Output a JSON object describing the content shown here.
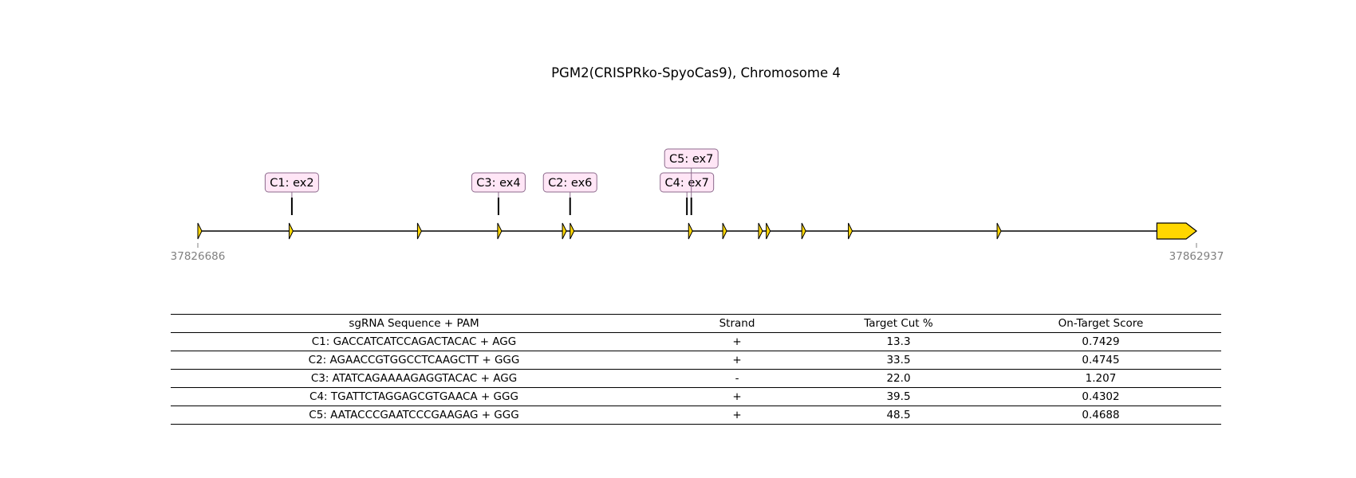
{
  "title": "PGM2(CRISPRko-SpyoCas9), Chromosome 4",
  "gene": {
    "start_label": "37826686",
    "end_label": "37862937",
    "start": 37826686,
    "end": 37862937,
    "exons": [
      37826686,
      37830000,
      37834660,
      37837570,
      37839920,
      37840200,
      37844500,
      37845740,
      37847040,
      37847320,
      37848610,
      37850300,
      37855700
    ],
    "final_exon": [
      37861500,
      37862937
    ],
    "exon_color": "#FFD700"
  },
  "cut_sites": [
    {
      "label": "C1: ex2",
      "pos": 37830100,
      "tier": 1
    },
    {
      "label": "C3: ex4",
      "pos": 37837600,
      "tier": 1
    },
    {
      "label": "C2: ex6",
      "pos": 37840200,
      "tier": 1
    },
    {
      "label": "C4: ex7",
      "pos": 37844440,
      "tier": 1
    },
    {
      "label": "C5: ex7",
      "pos": 37844600,
      "tier": 2
    }
  ],
  "label_box_fill": "#FFE6F6",
  "label_box_edge": "#8C6A8C",
  "table": {
    "headers": [
      "sgRNA Sequence + PAM",
      "Strand",
      "Target Cut %",
      "On-Target Score"
    ],
    "rows": [
      [
        "C1: GACCATCATCCAGACTACAC + AGG",
        "+",
        "13.3",
        "0.7429"
      ],
      [
        "C2: AGAACCGTGGCCTCAAGCTT + GGG",
        "+",
        "33.5",
        "0.4745"
      ],
      [
        "C3: ATATCAGAAAAGAGGTACAC + AGG",
        "-",
        "22.0",
        "1.207"
      ],
      [
        "C4: TGATTCTAGGAGCGTGAACA + GGG",
        "+",
        "39.5",
        "0.4302"
      ],
      [
        "C5: AATACCCGAATCCCGAAGAG + GGG",
        "+",
        "48.5",
        "0.4688"
      ]
    ]
  }
}
